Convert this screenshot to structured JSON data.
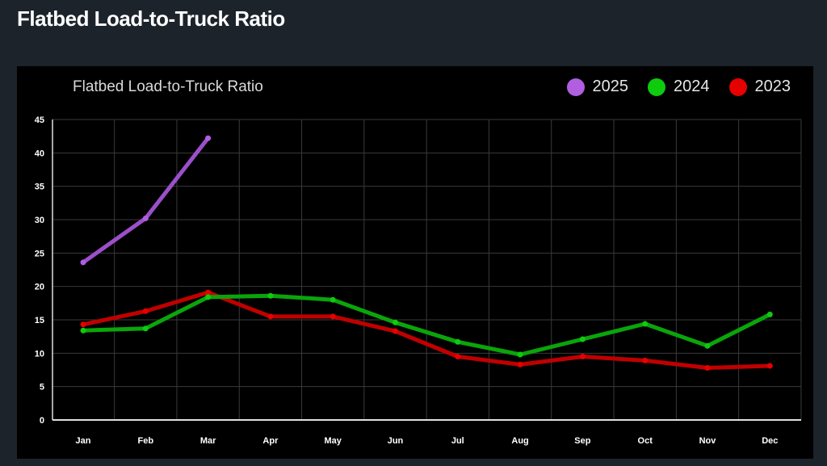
{
  "page": {
    "heading": "Flatbed Load-to-Truck Ratio"
  },
  "chart_data": {
    "type": "line",
    "title": "Flatbed Load-to-Truck Ratio",
    "xlabel": "",
    "ylabel": "",
    "categories": [
      "Jan",
      "Feb",
      "Mar",
      "Apr",
      "May",
      "Jun",
      "Jul",
      "Aug",
      "Sep",
      "Oct",
      "Nov",
      "Dec"
    ],
    "ylim": [
      0,
      45
    ],
    "yticks": [
      0,
      5,
      10,
      15,
      20,
      25,
      30,
      35,
      40,
      45
    ],
    "grid": true,
    "legend_position": "top-right",
    "series": [
      {
        "name": "2025",
        "color": "#b05fe0",
        "line_color": "#9b4fc9",
        "values": [
          23.6,
          30.2,
          42.2,
          null,
          null,
          null,
          null,
          null,
          null,
          null,
          null,
          null
        ]
      },
      {
        "name": "2024",
        "color": "#0ecb0e",
        "line_color": "#0aa50a",
        "values": [
          13.4,
          13.7,
          18.4,
          18.6,
          18.0,
          14.6,
          11.7,
          9.8,
          12.1,
          14.4,
          11.1,
          15.8
        ]
      },
      {
        "name": "2023",
        "color": "#e60000",
        "line_color": "#c00000",
        "values": [
          14.3,
          16.3,
          19.1,
          15.5,
          15.5,
          13.3,
          9.5,
          8.3,
          9.5,
          8.9,
          7.8,
          8.1
        ]
      }
    ]
  }
}
